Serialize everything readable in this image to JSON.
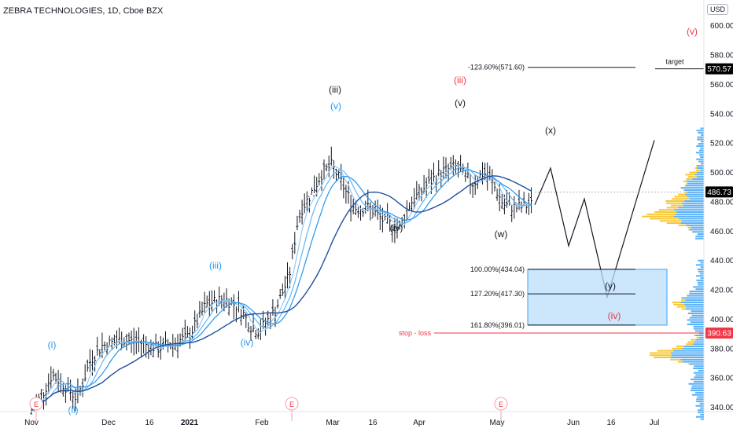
{
  "title": "ZEBRA TECHNOLOGIES, 1D, Cboe BZX",
  "currency_badge": "USD",
  "chart_data": {
    "type": "candlestick",
    "y_axis": {
      "ticks": [
        "600.00",
        "580.00",
        "560.00",
        "540.00",
        "520.00",
        "500.00",
        "480.00",
        "460.00",
        "440.00",
        "420.00",
        "400.00",
        "380.00",
        "360.00",
        "340.00"
      ],
      "tick_values": [
        600,
        580,
        560,
        540,
        520,
        500,
        480,
        460,
        440,
        420,
        400,
        380,
        360,
        340
      ],
      "range": [
        329,
        606
      ]
    },
    "x_axis": {
      "ticks": [
        "Nov",
        "Dec",
        "16",
        "2021",
        "Feb",
        "Mar",
        "16",
        "Apr",
        "May",
        "Jun",
        "16",
        "Jul"
      ],
      "bold": [
        false,
        false,
        false,
        true,
        false,
        false,
        false,
        false,
        false,
        false,
        false,
        false
      ]
    },
    "price_labels": [
      {
        "text": "570.57",
        "value": 570.57,
        "color": "#000000"
      },
      {
        "text": "486.73",
        "value": 486.73,
        "color": "#000000"
      },
      {
        "text": "390.63",
        "value": 390.63,
        "color": "#f23645"
      }
    ],
    "fib_levels": [
      {
        "label": "-123.60%(571.60)",
        "value": 571.6
      },
      {
        "label": "100.00%(434.04)",
        "value": 434.04
      },
      {
        "label": "127.20%(417.30)",
        "value": 417.3
      },
      {
        "label": "161.80%(396.01)",
        "value": 396.01
      }
    ],
    "target_label": "target",
    "stop_loss_label": "stop - loss",
    "earnings_marker": "E",
    "wave_labels": [
      {
        "text": "(i)",
        "color": "#2196f3"
      },
      {
        "text": "(ii)",
        "color": "#2196f3"
      },
      {
        "text": "(iii)",
        "color": "#2196f3"
      },
      {
        "text": "(iv)",
        "color": "#2196f3"
      },
      {
        "text": "(v)",
        "color": "#2196f3"
      },
      {
        "text": "(iii)",
        "color": "#131722"
      },
      {
        "text": "(iv)",
        "color": "#131722"
      },
      {
        "text": "(v)",
        "color": "#131722"
      },
      {
        "text": "(iii)",
        "color": "#f23645"
      },
      {
        "text": "(x)",
        "color": "#131722"
      },
      {
        "text": "(w)",
        "color": "#131722"
      },
      {
        "text": "(y)",
        "color": "#131722"
      },
      {
        "text": "(iv)",
        "color": "#f23645"
      },
      {
        "text": "(v)",
        "color": "#f23645"
      }
    ]
  }
}
